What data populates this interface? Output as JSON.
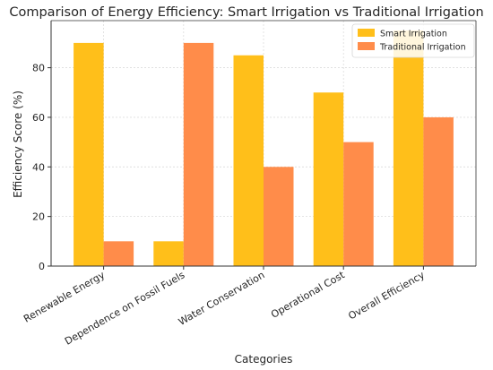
{
  "chart_data": {
    "type": "bar",
    "title": "Comparison of Energy Efficiency: Smart Irrigation vs Traditional Irrigation",
    "xlabel": "Categories",
    "ylabel": "Efficiency Score (%)",
    "categories": [
      "Renewable Energy",
      "Dependence on Fossil Fuels",
      "Water Conservation",
      "Operational Cost",
      "Overall Efficiency"
    ],
    "series": [
      {
        "name": "Smart Irrigation",
        "color": "#FFBF1A",
        "values": [
          90,
          10,
          85,
          70,
          95
        ]
      },
      {
        "name": "Traditional Irrigation",
        "color": "#FF8C4A",
        "values": [
          10,
          90,
          40,
          50,
          60
        ]
      }
    ],
    "ylim": [
      0,
      99
    ],
    "yticks": [
      0,
      20,
      40,
      60,
      80
    ],
    "grid": true,
    "legend": "top-right"
  }
}
